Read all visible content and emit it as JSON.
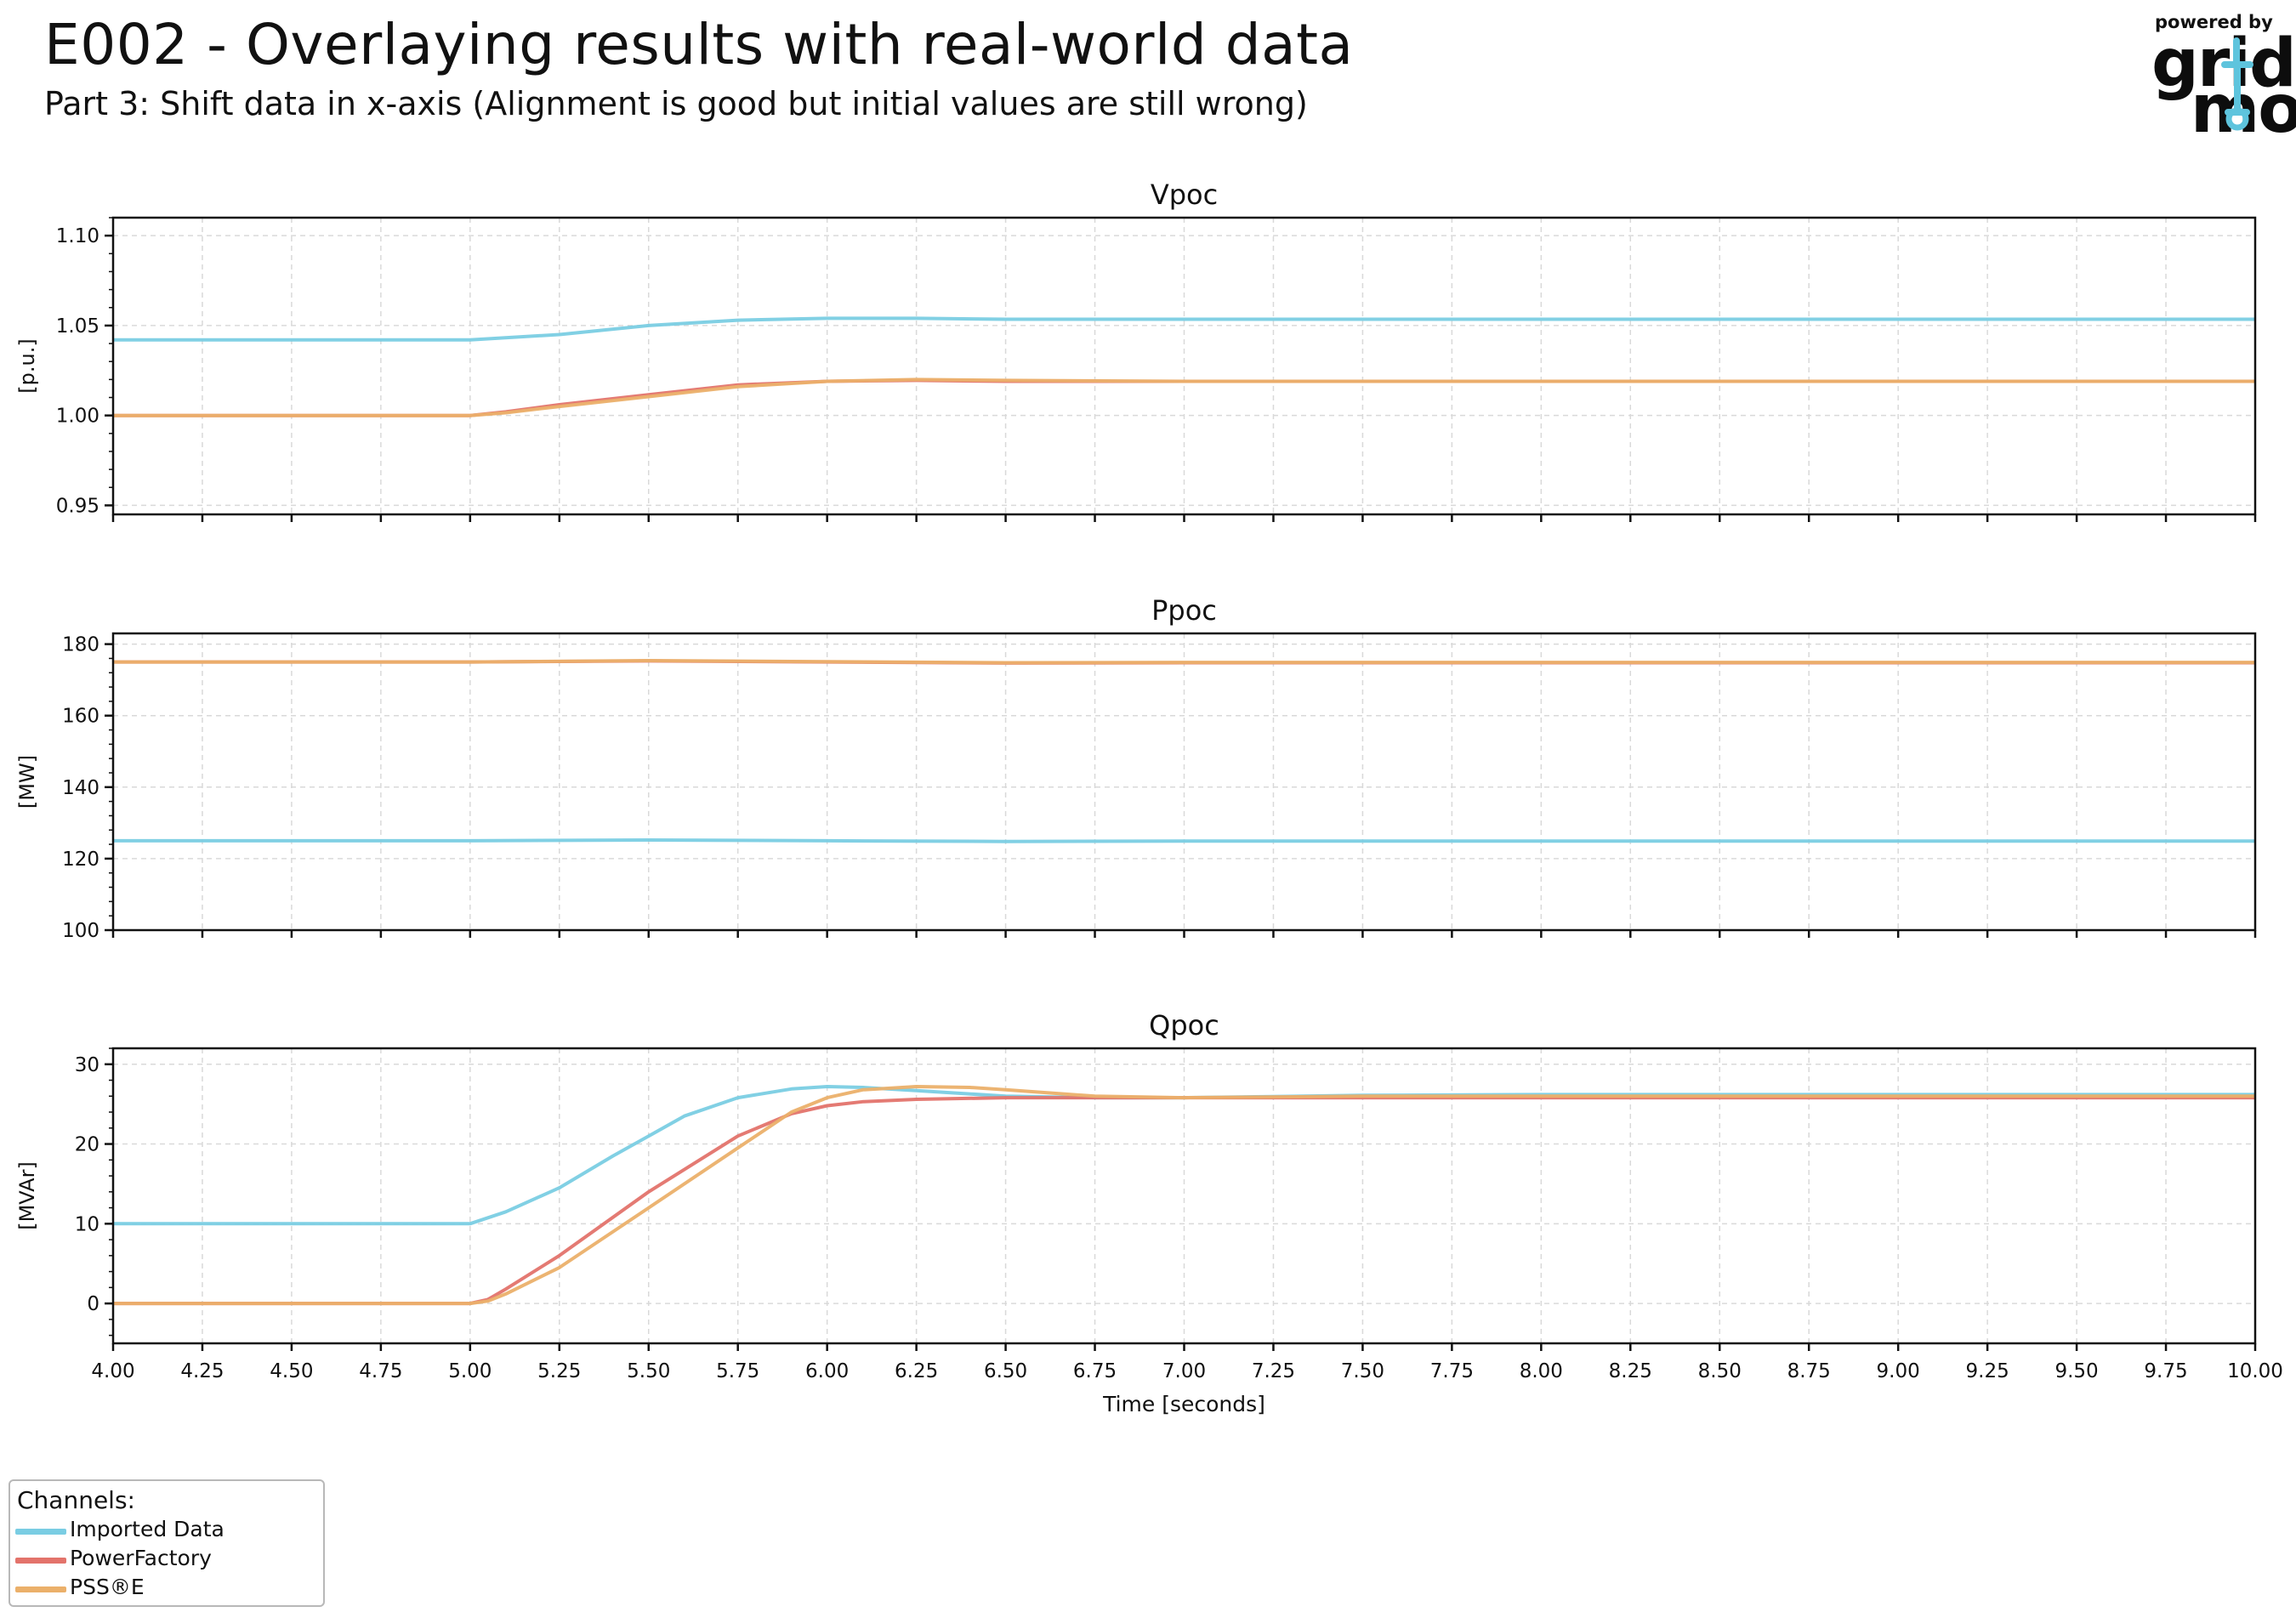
{
  "title": "E002 - Overlaying results with real-world data",
  "subtitle": "Part 3: Shift data in x-axis (Alignment is good but initial values are still wrong)",
  "logo": {
    "caption": "powered by",
    "line1": "grid",
    "line2": "mo",
    "accent": "#5ec4dd"
  },
  "legend": {
    "title": "Channels:",
    "items": [
      {
        "label": "Imported Data",
        "color": "#7acde3"
      },
      {
        "label": "PowerFactory",
        "color": "#e3736b"
      },
      {
        "label": "PSS®E",
        "color": "#ebb06a"
      }
    ]
  },
  "chart_data": [
    {
      "type": "line",
      "title": "Vpoc",
      "ylabel": "[p.u.]",
      "xlabel": "",
      "xlim": [
        4.0,
        10.0
      ],
      "ylim": [
        0.945,
        1.11
      ],
      "yticks": [
        0.95,
        1.0,
        1.05,
        1.1
      ],
      "ytick_labels": [
        "0.95",
        "1.00",
        "1.05",
        "1.10"
      ],
      "grid": true,
      "series": [
        {
          "name": "Imported Data",
          "color": "#7acde3",
          "x": [
            4.0,
            5.0,
            5.25,
            5.5,
            5.75,
            6.0,
            6.25,
            6.5,
            7.0,
            8.0,
            10.0
          ],
          "y": [
            1.042,
            1.042,
            1.045,
            1.05,
            1.053,
            1.054,
            1.054,
            1.0535,
            1.0535,
            1.0535,
            1.0535
          ]
        },
        {
          "name": "PowerFactory",
          "color": "#e3736b",
          "x": [
            4.0,
            5.0,
            5.1,
            5.25,
            5.5,
            5.75,
            6.0,
            6.25,
            6.5,
            7.0,
            10.0
          ],
          "y": [
            1.0,
            1.0,
            1.002,
            1.006,
            1.0115,
            1.017,
            1.019,
            1.0195,
            1.019,
            1.019,
            1.019
          ]
        },
        {
          "name": "PSS®E",
          "color": "#ebb06a",
          "x": [
            4.0,
            5.0,
            5.1,
            5.25,
            5.5,
            5.75,
            6.0,
            6.25,
            6.5,
            7.0,
            10.0
          ],
          "y": [
            1.0,
            1.0,
            1.0015,
            1.005,
            1.0105,
            1.016,
            1.019,
            1.02,
            1.0195,
            1.019,
            1.019
          ]
        }
      ]
    },
    {
      "type": "line",
      "title": "Ppoc",
      "ylabel": "[MW]",
      "xlabel": "",
      "xlim": [
        4.0,
        10.0
      ],
      "ylim": [
        100,
        183
      ],
      "yticks": [
        100,
        120,
        140,
        160,
        180
      ],
      "ytick_labels": [
        "100",
        "120",
        "140",
        "160",
        "180"
      ],
      "grid": true,
      "series": [
        {
          "name": "Imported Data",
          "color": "#7acde3",
          "x": [
            4.0,
            5.0,
            5.5,
            6.0,
            6.5,
            7.0,
            10.0
          ],
          "y": [
            125,
            125,
            125.2,
            125,
            124.8,
            124.9,
            124.9
          ]
        },
        {
          "name": "PowerFactory",
          "color": "#e3736b",
          "x": [
            4.0,
            5.0,
            5.5,
            6.0,
            6.5,
            7.0,
            10.0
          ],
          "y": [
            175,
            175,
            175.3,
            175,
            174.7,
            174.8,
            174.8
          ]
        },
        {
          "name": "PSS®E",
          "color": "#ebb06a",
          "x": [
            4.0,
            5.0,
            5.5,
            6.0,
            6.5,
            7.0,
            10.0
          ],
          "y": [
            175,
            175,
            175.4,
            175.1,
            174.8,
            174.9,
            174.9
          ]
        }
      ]
    },
    {
      "type": "line",
      "title": "Qpoc",
      "ylabel": "[MVAr]",
      "xlabel": "Time [seconds]",
      "xlim": [
        4.0,
        10.0
      ],
      "ylim": [
        -5,
        32
      ],
      "yticks": [
        0,
        10,
        20,
        30
      ],
      "ytick_labels": [
        "0",
        "10",
        "20",
        "30"
      ],
      "xticks": [
        4.0,
        4.25,
        4.5,
        4.75,
        5.0,
        5.25,
        5.5,
        5.75,
        6.0,
        6.25,
        6.5,
        6.75,
        7.0,
        7.25,
        7.5,
        7.75,
        8.0,
        8.25,
        8.5,
        8.75,
        9.0,
        9.25,
        9.5,
        9.75,
        10.0
      ],
      "xtick_labels": [
        "4.00",
        "4.25",
        "4.50",
        "4.75",
        "5.00",
        "5.25",
        "5.50",
        "5.75",
        "6.00",
        "6.25",
        "6.50",
        "6.75",
        "7.00",
        "7.25",
        "7.50",
        "7.75",
        "8.00",
        "8.25",
        "8.50",
        "8.75",
        "9.00",
        "9.25",
        "9.50",
        "9.75",
        "10.00"
      ],
      "grid": true,
      "series": [
        {
          "name": "Imported Data",
          "color": "#7acde3",
          "x": [
            4.0,
            5.0,
            5.1,
            5.25,
            5.4,
            5.5,
            5.6,
            5.75,
            5.9,
            6.0,
            6.1,
            6.25,
            6.5,
            6.75,
            7.0,
            7.5,
            8.0,
            10.0
          ],
          "y": [
            10,
            10,
            11.5,
            14.5,
            18.5,
            21,
            23.5,
            25.8,
            26.9,
            27.2,
            27.1,
            26.7,
            26.0,
            25.8,
            25.8,
            26.1,
            26.2,
            26.2
          ]
        },
        {
          "name": "PowerFactory",
          "color": "#e3736b",
          "x": [
            4.0,
            5.0,
            5.05,
            5.1,
            5.25,
            5.5,
            5.75,
            5.9,
            6.0,
            6.1,
            6.25,
            6.5,
            6.75,
            7.0,
            10.0
          ],
          "y": [
            0,
            0,
            0.5,
            1.8,
            6.0,
            14.0,
            21.0,
            23.8,
            24.8,
            25.3,
            25.6,
            25.8,
            25.8,
            25.8,
            25.8
          ]
        },
        {
          "name": "PSS®E",
          "color": "#ebb06a",
          "x": [
            4.0,
            5.0,
            5.05,
            5.1,
            5.25,
            5.5,
            5.75,
            5.9,
            6.0,
            6.1,
            6.25,
            6.4,
            6.5,
            6.75,
            7.0,
            7.5,
            8.0,
            10.0
          ],
          "y": [
            0,
            0,
            0.3,
            1.2,
            4.5,
            12.0,
            19.5,
            24.0,
            25.8,
            26.8,
            27.2,
            27.1,
            26.8,
            26.0,
            25.8,
            26.0,
            26.0,
            26.0
          ]
        }
      ]
    }
  ]
}
